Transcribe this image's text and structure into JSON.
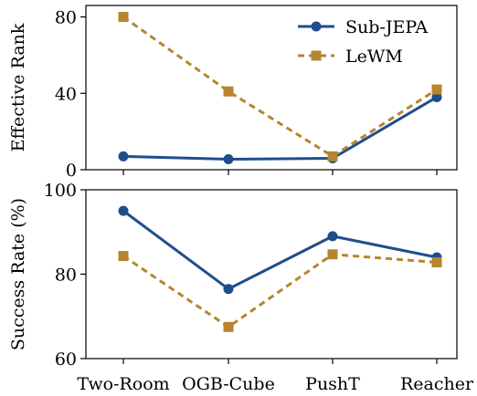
{
  "chart_data": [
    {
      "type": "line",
      "categories": [
        "Two-Room",
        "OGB-Cube",
        "PushT",
        "Reacher"
      ],
      "ylabel": "Effective Rank",
      "ylim": [
        0,
        86
      ],
      "yticks": [
        0,
        40,
        80
      ],
      "series": [
        {
          "name": "Sub-JEPA",
          "values": [
            7,
            5.5,
            6,
            38
          ],
          "color": "#1f4e8c",
          "marker": "circle",
          "dash": "solid"
        },
        {
          "name": "LeWM",
          "values": [
            80,
            41,
            7,
            42
          ],
          "color": "#b5862f",
          "marker": "square",
          "dash": "dashed"
        }
      ],
      "legend": "top-right"
    },
    {
      "type": "line",
      "categories": [
        "Two-Room",
        "OGB-Cube",
        "PushT",
        "Reacher"
      ],
      "ylabel": "Success Rate (%)",
      "ylim": [
        60,
        100
      ],
      "yticks": [
        60,
        80,
        100
      ],
      "series": [
        {
          "name": "Sub-JEPA",
          "values": [
            95,
            76.5,
            89,
            84
          ],
          "color": "#1f4e8c",
          "marker": "circle",
          "dash": "solid"
        },
        {
          "name": "LeWM",
          "values": [
            84.3,
            67.5,
            84.7,
            82.8
          ],
          "color": "#b5862f",
          "marker": "square",
          "dash": "dashed"
        }
      ]
    }
  ]
}
